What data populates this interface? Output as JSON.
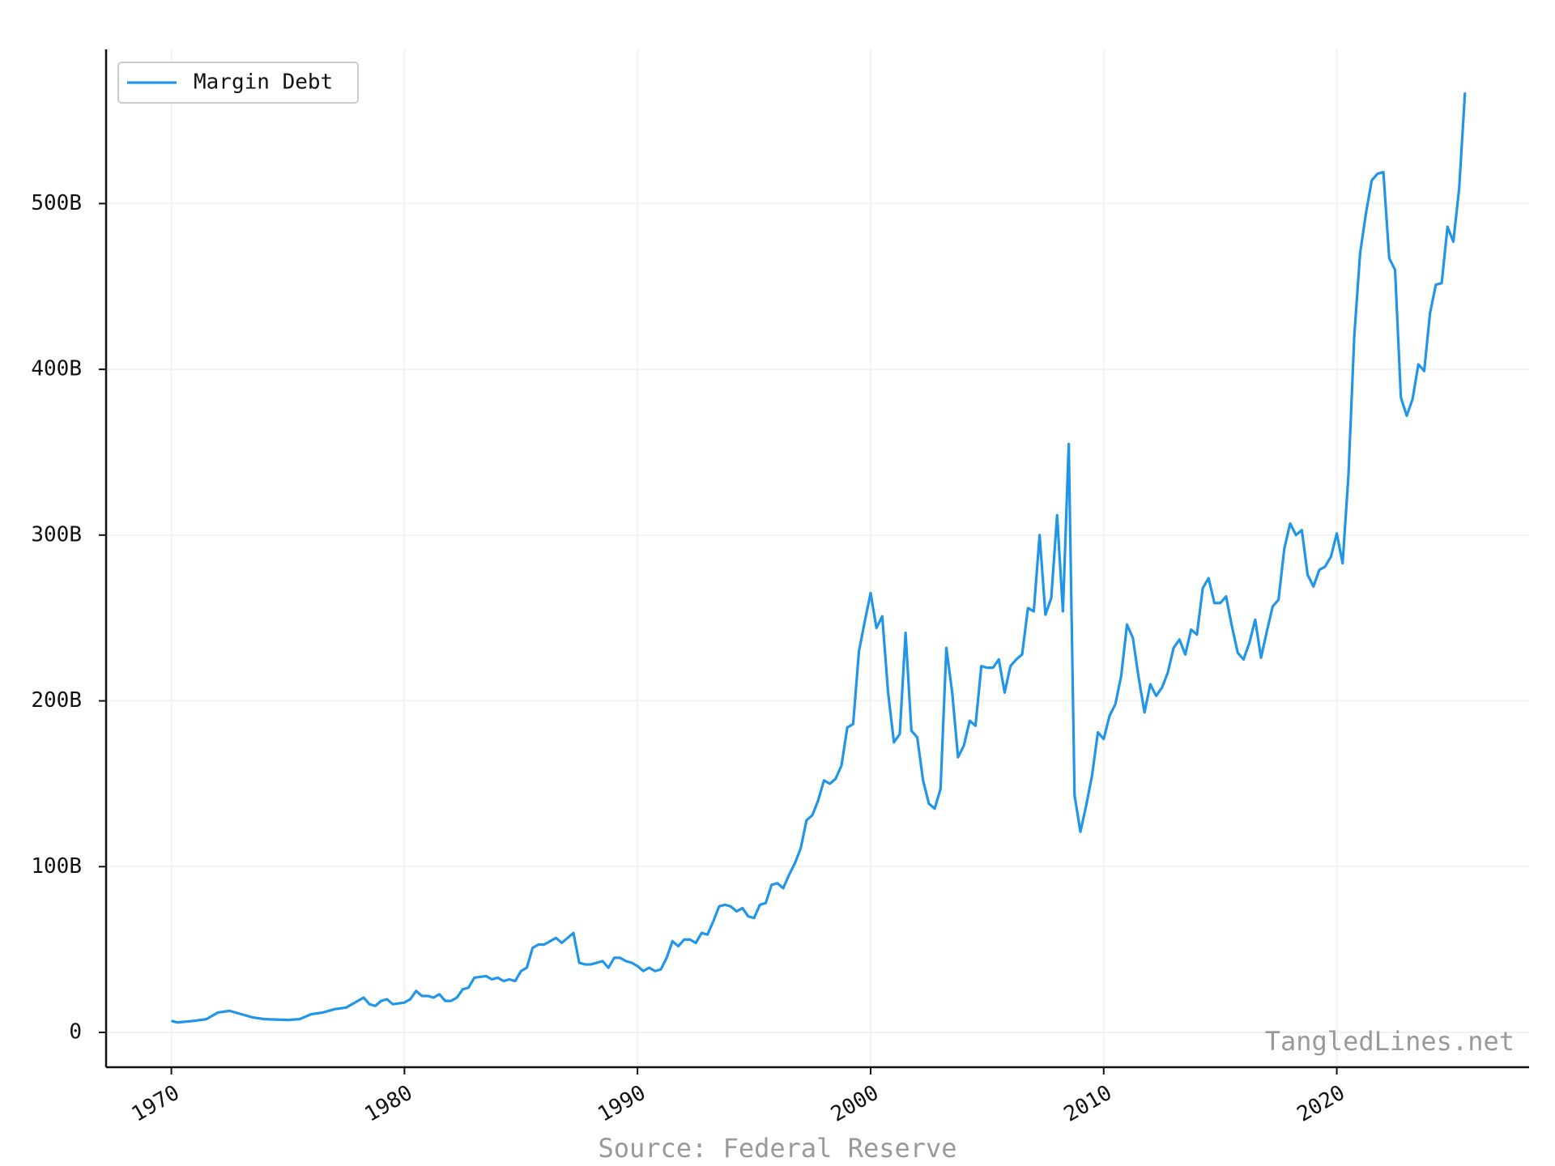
{
  "chart_data": {
    "type": "line",
    "source": "Source: Federal Reserve",
    "watermark": "TangledLines.net",
    "x": [
      1970,
      1970.25,
      1971,
      1971.5,
      1972,
      1972.5,
      1973,
      1973.5,
      1974,
      1975,
      1975.5,
      1976,
      1976.5,
      1977,
      1977.5,
      1978,
      1978.25,
      1978.5,
      1978.75,
      1979,
      1979.25,
      1979.5,
      1980,
      1980.25,
      1980.5,
      1980.75,
      1981,
      1981.25,
      1981.5,
      1981.75,
      1982,
      1982.25,
      1982.5,
      1982.75,
      1983,
      1983.5,
      1983.75,
      1984,
      1984.25,
      1984.5,
      1984.75,
      1985,
      1985.25,
      1985.5,
      1985.75,
      1986,
      1986.25,
      1986.5,
      1986.75,
      1987,
      1987.25,
      1987.5,
      1987.75,
      1988,
      1988.5,
      1988.75,
      1989,
      1989.25,
      1989.5,
      1989.75,
      1990,
      1990.25,
      1990.5,
      1990.75,
      1991,
      1991.25,
      1991.5,
      1991.75,
      1992,
      1992.25,
      1992.5,
      1992.75,
      1993,
      1993.25,
      1993.5,
      1993.75,
      1994,
      1994.25,
      1994.5,
      1994.75,
      1995,
      1995.25,
      1995.5,
      1995.75,
      1996,
      1996.25,
      1996.5,
      1996.75,
      1997,
      1997.25,
      1997.5,
      1997.75,
      1998,
      1998.25,
      1998.5,
      1998.75,
      1999,
      1999.25,
      1999.5,
      1999.75,
      2000,
      2000.25,
      2000.5,
      2000.75,
      2001,
      2001.25,
      2001.5,
      2001.75,
      2002,
      2002.25,
      2002.5,
      2002.75,
      2003,
      2003.25,
      2003.5,
      2003.75,
      2004,
      2004.25,
      2004.5,
      2004.75,
      2005,
      2005.25,
      2005.5,
      2005.75,
      2006,
      2006.25,
      2006.5,
      2006.75,
      2007,
      2007.25,
      2007.5,
      2007.75,
      2008,
      2008.25,
      2008.5,
      2008.75,
      2009,
      2009.25,
      2009.5,
      2009.75,
      2010,
      2010.25,
      2010.5,
      2010.75,
      2011,
      2011.25,
      2011.5,
      2011.75,
      2012,
      2012.25,
      2012.5,
      2012.75,
      2013,
      2013.25,
      2013.5,
      2013.75,
      2014,
      2014.25,
      2014.5,
      2014.75,
      2015,
      2015.25,
      2015.5,
      2015.75,
      2016,
      2016.25,
      2016.5,
      2016.75,
      2017,
      2017.25,
      2017.5,
      2017.75,
      2018,
      2018.25,
      2018.5,
      2018.75,
      2019,
      2019.25,
      2019.5,
      2019.75,
      2020,
      2020.25,
      2020.5,
      2020.75,
      2021,
      2021.25,
      2021.5,
      2021.75,
      2022,
      2022.25,
      2022.5,
      2022.75,
      2023,
      2023.25,
      2023.5,
      2023.75,
      2024,
      2024.25,
      2024.5,
      2024.75,
      2025,
      2025.25,
      2025.5
    ],
    "series": [
      {
        "name": "Margin Debt",
        "color": "#2196e8",
        "values": [
          7,
          6,
          7,
          8,
          12,
          13,
          11,
          9,
          8,
          7.5,
          8,
          11,
          12,
          14,
          15,
          19,
          21,
          17,
          16,
          19,
          20,
          17,
          18,
          20,
          25,
          22,
          22,
          21,
          23,
          19,
          19,
          21,
          26,
          27,
          33,
          34,
          32,
          33,
          31,
          32,
          31,
          37,
          39,
          51,
          53,
          53,
          55,
          57,
          54,
          57,
          60,
          42,
          41,
          41,
          43,
          39,
          45,
          45,
          43,
          42,
          40,
          37,
          39,
          37,
          38,
          45,
          55,
          52,
          56,
          56,
          54,
          60,
          59,
          67,
          76,
          77,
          76,
          73,
          75,
          70,
          69,
          77,
          78,
          89,
          90,
          87,
          95,
          102,
          111,
          128,
          131,
          140,
          152,
          150,
          153,
          161,
          184,
          186,
          230,
          248,
          265,
          244,
          251,
          205,
          175,
          180,
          241,
          182,
          178,
          152,
          138,
          135,
          147,
          232,
          205,
          166,
          173,
          188,
          185,
          221,
          220,
          220,
          225,
          205,
          221,
          225,
          228,
          256,
          254,
          300,
          252,
          262,
          312,
          254,
          355,
          143,
          121,
          137,
          155,
          181,
          177,
          191,
          198,
          215,
          246,
          238,
          214,
          193,
          210,
          203,
          208,
          217,
          232,
          237,
          228,
          243,
          240,
          268,
          274,
          259,
          259,
          263,
          245,
          229,
          225,
          235,
          249,
          226,
          242,
          257,
          261,
          292,
          307,
          300,
          303,
          276,
          269,
          279,
          281,
          287,
          301,
          283,
          336,
          420,
          470,
          494,
          514,
          518,
          519,
          467,
          460,
          383,
          372,
          382,
          403,
          399,
          434,
          451,
          452,
          486,
          477,
          509,
          567
        ]
      }
    ],
    "xlim": [
      1967.2,
      2028.25
    ],
    "xticks": [
      1970,
      1980,
      1990,
      2000,
      2010,
      2020
    ],
    "ylim": [
      -21,
      593
    ],
    "yticks": [
      0,
      {
        "value": 100,
        "label": "100B"
      },
      {
        "value": 200,
        "label": "200B"
      },
      {
        "value": 300,
        "label": "300B"
      },
      {
        "value": 400,
        "label": "400B"
      },
      {
        "value": 500,
        "label": "500B"
      }
    ],
    "grid": true,
    "legend": "upper left"
  }
}
